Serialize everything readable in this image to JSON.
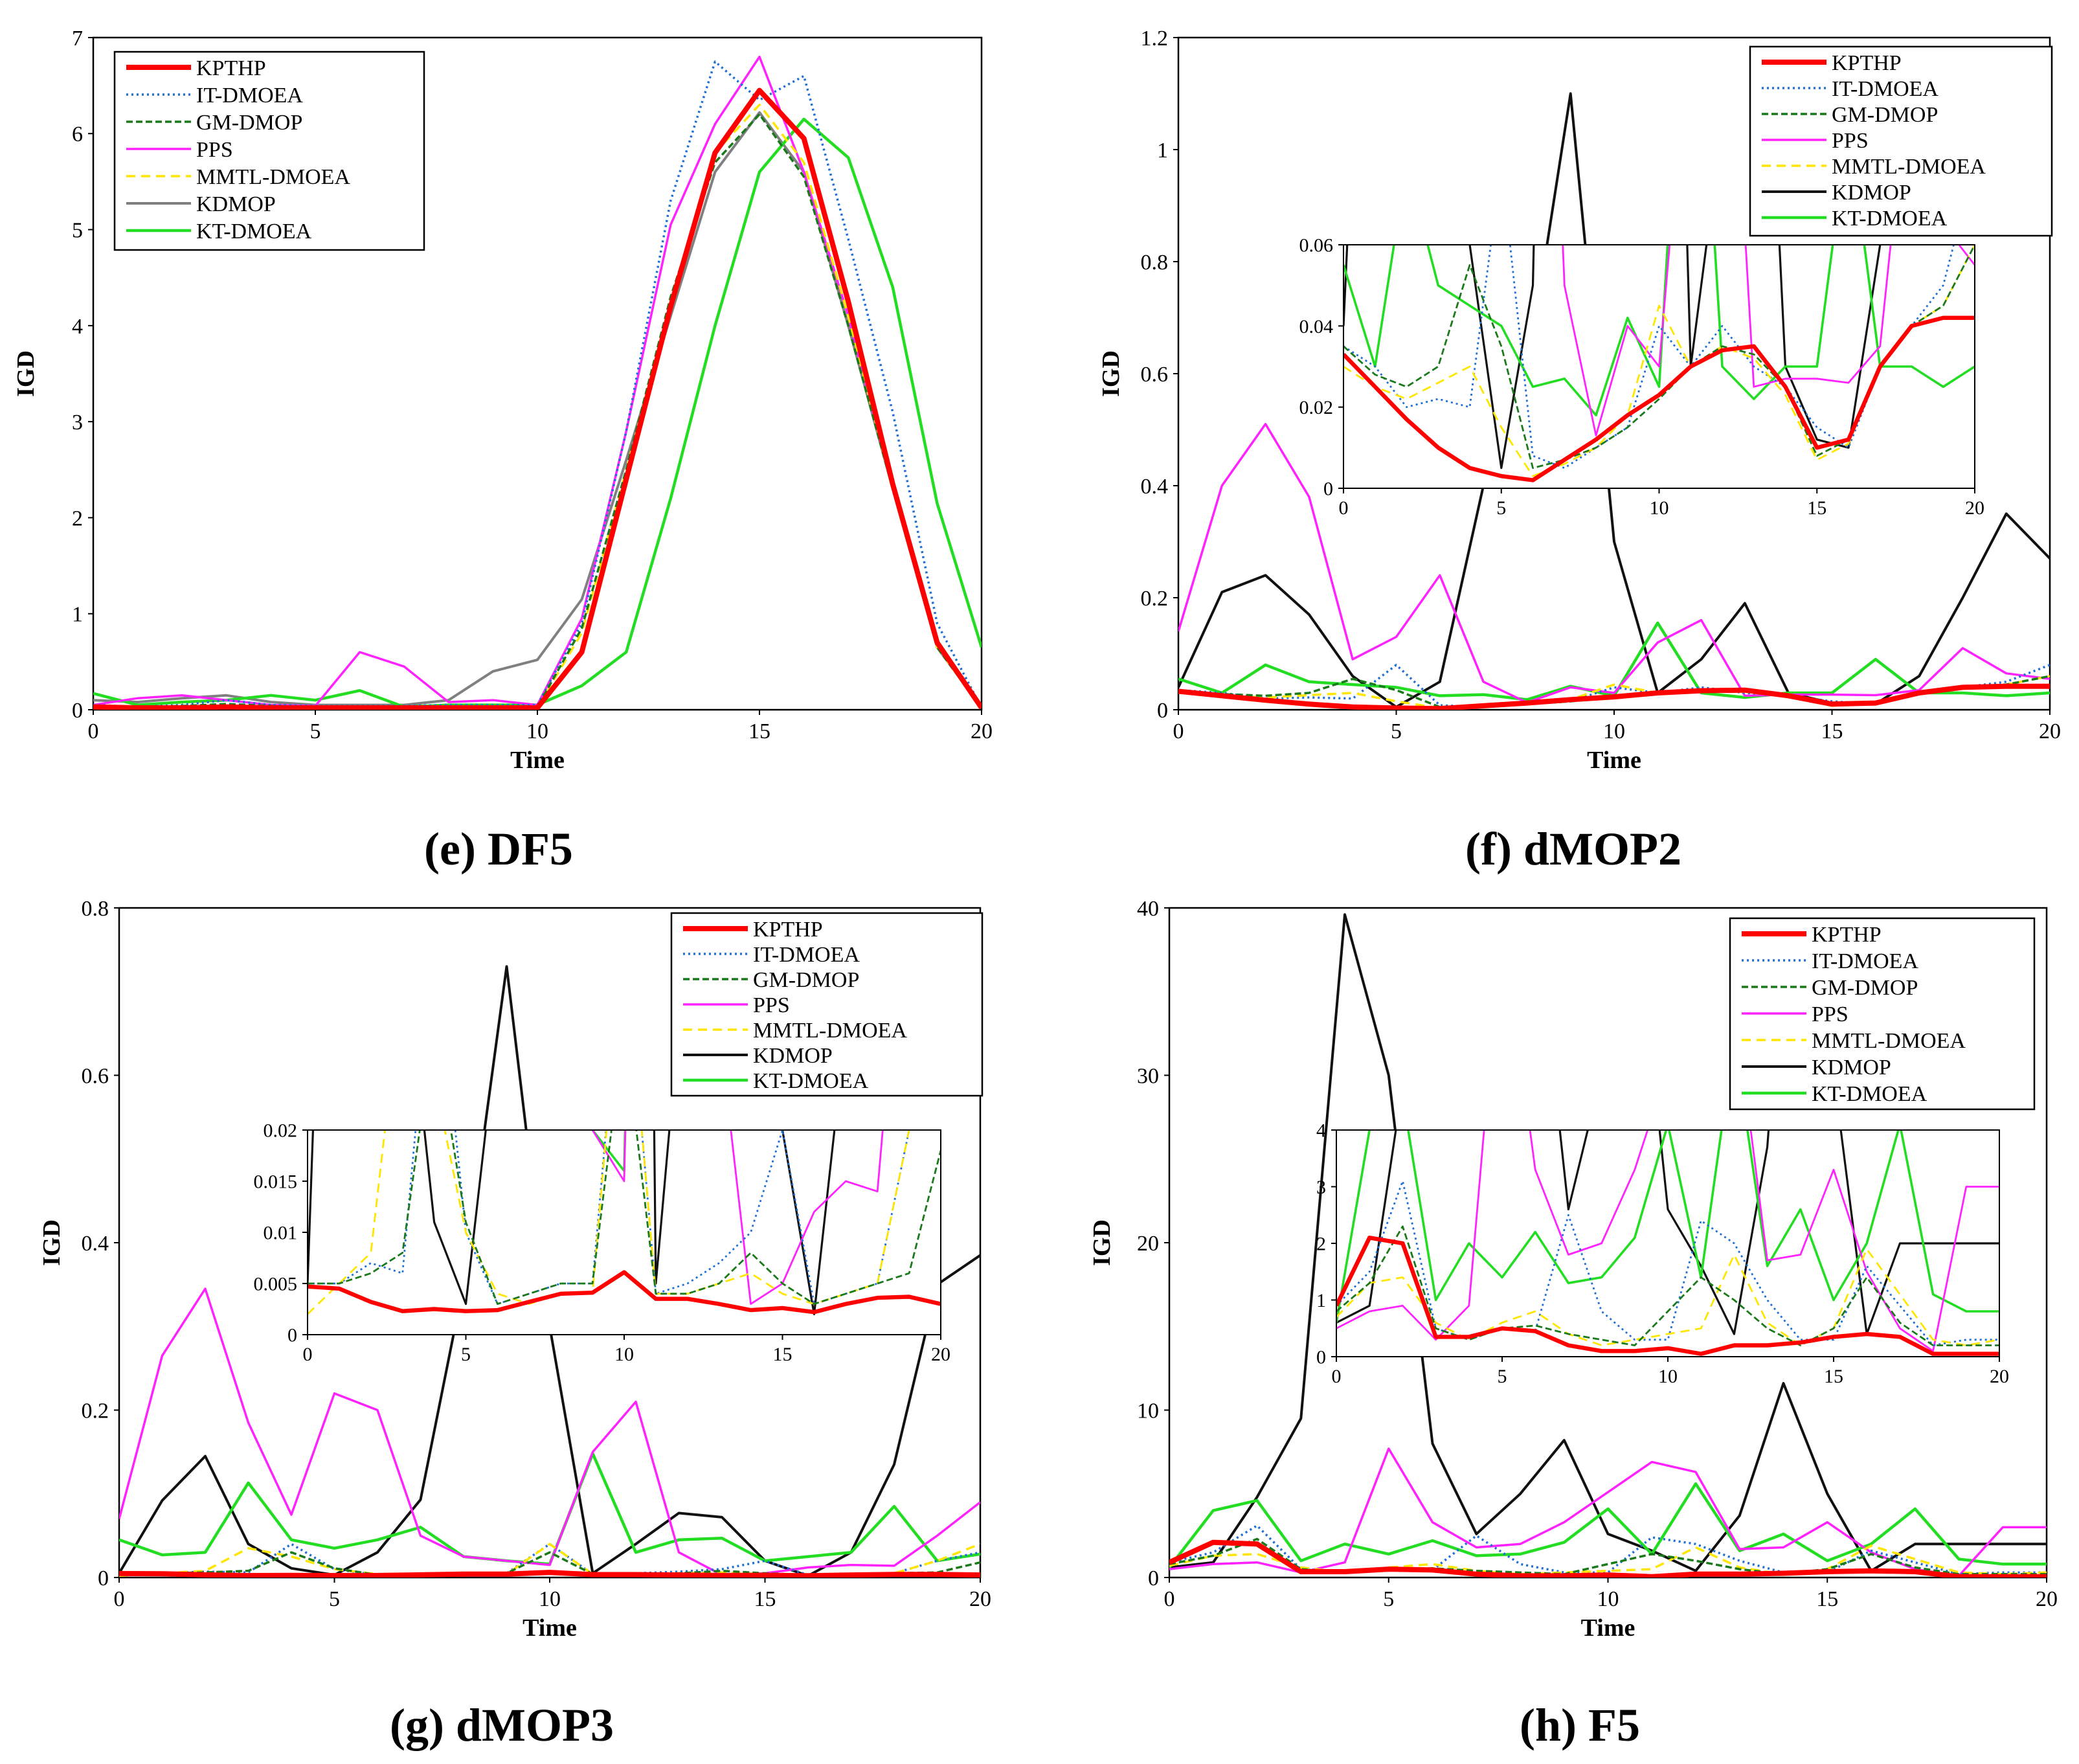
{
  "colors": {
    "KPTHP": "#ff0000",
    "IT-DMOEA": "#1f6fd6",
    "GM-DMOP": "#1a7a1a",
    "PPS": "#ff22ff",
    "MMTL-DMOEA": "#ffe600",
    "KDMOP": "#111111",
    "KDMOP_gray": "#808080",
    "KT-DMOEA": "#22dd22"
  },
  "chart_data": [
    {
      "type": "line",
      "caption": "(e) DF5",
      "xlabel": "Time",
      "ylabel": "IGD",
      "xlim": [
        0,
        20
      ],
      "ylim": [
        0,
        7
      ],
      "xticks": [
        "0",
        "5",
        "10",
        "15",
        "20"
      ],
      "yticks": [
        "0",
        "1",
        "2",
        "3",
        "4",
        "5",
        "6",
        "7"
      ],
      "legend": [
        "KPTHP",
        "IT-DMOEA",
        "GM-DMOP",
        "PPS",
        "MMTL-DMOEA",
        "KDMOP",
        "KT-DMOEA"
      ],
      "legend_position": "top-left",
      "x": [
        0,
        1,
        2,
        3,
        4,
        5,
        6,
        7,
        8,
        9,
        10,
        11,
        12,
        13,
        14,
        15,
        16,
        17,
        18,
        19,
        20
      ],
      "series": [
        {
          "name": "KPTHP",
          "values": [
            0.03,
            0.02,
            0.02,
            0.03,
            0.02,
            0.02,
            0.02,
            0.02,
            0.02,
            0.02,
            0.02,
            0.6,
            2.4,
            4.2,
            5.8,
            6.45,
            5.95,
            4.25,
            2.35,
            0.7,
            0.02
          ]
        },
        {
          "name": "IT-DMOEA",
          "values": [
            0.05,
            0.03,
            0.05,
            0.1,
            0.05,
            0.04,
            0.04,
            0.04,
            0.05,
            0.05,
            0.05,
            0.9,
            2.9,
            5.3,
            6.75,
            6.35,
            6.6,
            4.9,
            3.1,
            0.9,
            0.02
          ]
        },
        {
          "name": "GM-DMOP",
          "values": [
            0.04,
            0.03,
            0.04,
            0.06,
            0.04,
            0.03,
            0.03,
            0.03,
            0.03,
            0.03,
            0.03,
            0.85,
            2.5,
            4.3,
            5.7,
            6.2,
            5.55,
            4.0,
            2.3,
            0.65,
            0.02
          ]
        },
        {
          "name": "PPS",
          "values": [
            0.05,
            0.12,
            0.15,
            0.1,
            0.05,
            0.04,
            0.6,
            0.45,
            0.08,
            0.1,
            0.05,
            0.95,
            2.9,
            5.05,
            6.1,
            6.8,
            5.6,
            4.1,
            2.3,
            0.7,
            0.02
          ]
        },
        {
          "name": "MMTL-DMOEA",
          "values": [
            0.03,
            0.02,
            0.03,
            0.04,
            0.03,
            0.02,
            0.02,
            0.02,
            0.02,
            0.02,
            0.02,
            0.8,
            2.5,
            4.2,
            5.8,
            6.3,
            5.7,
            4.1,
            2.3,
            0.65,
            0.02
          ]
        },
        {
          "name": "KDMOP",
          "values": [
            0.1,
            0.08,
            0.12,
            0.15,
            0.08,
            0.05,
            0.05,
            0.05,
            0.1,
            0.4,
            0.52,
            1.15,
            2.6,
            4.1,
            5.6,
            6.22,
            5.6,
            4.0,
            2.3,
            0.65,
            0.02
          ]
        },
        {
          "name": "KT-DMOEA",
          "values": [
            0.17,
            0.05,
            0.08,
            0.1,
            0.15,
            0.1,
            0.2,
            0.03,
            0.05,
            0.05,
            0.05,
            0.25,
            0.6,
            2.2,
            4.0,
            5.6,
            6.15,
            5.75,
            4.4,
            2.15,
            0.65
          ]
        }
      ]
    },
    {
      "type": "line",
      "caption": "(f) dMOP2",
      "xlabel": "Time",
      "ylabel": "IGD",
      "xlim": [
        0,
        20
      ],
      "ylim": [
        0,
        1.2
      ],
      "xticks": [
        "0",
        "5",
        "10",
        "15",
        "20"
      ],
      "yticks": [
        "0",
        "0.2",
        "0.4",
        "0.6",
        "0.8",
        "1",
        "1.2"
      ],
      "legend": [
        "KPTHP",
        "IT-DMOEA",
        "GM-DMOP",
        "PPS",
        "MMTL-DMOEA",
        "KDMOP",
        "KT-DMOEA"
      ],
      "legend_position": "top-right",
      "x": [
        0,
        1,
        2,
        3,
        4,
        5,
        6,
        7,
        8,
        9,
        10,
        11,
        12,
        13,
        14,
        15,
        16,
        17,
        18,
        19,
        20
      ],
      "series": [
        {
          "name": "KPTHP",
          "values": [
            0.033,
            0.025,
            0.017,
            0.01,
            0.005,
            0.003,
            0.002,
            0.007,
            0.012,
            0.018,
            0.023,
            0.03,
            0.034,
            0.035,
            0.025,
            0.01,
            0.012,
            0.03,
            0.04,
            0.042,
            0.042
          ]
        },
        {
          "name": "IT-DMOEA",
          "values": [
            0.035,
            0.03,
            0.02,
            0.022,
            0.02,
            0.08,
            0.008,
            0.005,
            0.01,
            0.015,
            0.04,
            0.03,
            0.04,
            0.03,
            0.025,
            0.015,
            0.01,
            0.03,
            0.04,
            0.05,
            0.08
          ]
        },
        {
          "name": "GM-DMOP",
          "values": [
            0.035,
            0.028,
            0.025,
            0.03,
            0.055,
            0.035,
            0.005,
            0.007,
            0.01,
            0.015,
            0.022,
            0.03,
            0.035,
            0.033,
            0.025,
            0.008,
            0.012,
            0.03,
            0.04,
            0.045,
            0.06
          ]
        },
        {
          "name": "PPS",
          "values": [
            0.14,
            0.4,
            0.51,
            0.38,
            0.09,
            0.13,
            0.24,
            0.05,
            0.013,
            0.04,
            0.03,
            0.12,
            0.16,
            0.025,
            0.027,
            0.027,
            0.026,
            0.035,
            0.11,
            0.065,
            0.055
          ]
        },
        {
          "name": "MMTL-DMOEA",
          "values": [
            0.03,
            0.025,
            0.022,
            0.026,
            0.03,
            0.015,
            0.003,
            0.006,
            0.01,
            0.018,
            0.045,
            0.03,
            0.035,
            0.032,
            0.023,
            0.007,
            0.011,
            0.03,
            0.04,
            0.045,
            0.06
          ]
        },
        {
          "name": "KDMOP",
          "values": [
            0.04,
            0.21,
            0.24,
            0.17,
            0.06,
            0.005,
            0.05,
            0.4,
            0.6,
            1.1,
            0.3,
            0.03,
            0.09,
            0.19,
            0.03,
            0.012,
            0.01,
            0.06,
            0.2,
            0.35,
            0.27
          ]
        },
        {
          "name": "KT-DMOEA",
          "values": [
            0.055,
            0.03,
            0.08,
            0.05,
            0.045,
            0.04,
            0.025,
            0.027,
            0.018,
            0.042,
            0.025,
            0.155,
            0.03,
            0.022,
            0.03,
            0.03,
            0.09,
            0.03,
            0.03,
            0.025,
            0.03
          ]
        }
      ],
      "inset": {
        "xlim": [
          0,
          20
        ],
        "ylim": [
          0,
          0.06
        ],
        "xticks": [
          "0",
          "5",
          "10",
          "15",
          "20"
        ],
        "yticks": [
          "0",
          "0.02",
          "0.04",
          "0.06"
        ]
      }
    },
    {
      "type": "line",
      "caption": "(g) dMOP3",
      "xlabel": "Time",
      "ylabel": "IGD",
      "xlim": [
        0,
        20
      ],
      "ylim": [
        0,
        0.8
      ],
      "xticks": [
        "0",
        "5",
        "10",
        "15",
        "20"
      ],
      "yticks": [
        "0",
        "0.2",
        "0.4",
        "0.6",
        "0.8"
      ],
      "legend": [
        "KPTHP",
        "IT-DMOEA",
        "GM-DMOP",
        "PPS",
        "MMTL-DMOEA",
        "KDMOP",
        "KT-DMOEA"
      ],
      "legend_position": "top-right",
      "x": [
        0,
        1,
        2,
        3,
        4,
        5,
        6,
        7,
        8,
        9,
        10,
        11,
        12,
        13,
        14,
        15,
        16,
        17,
        18,
        19,
        20
      ],
      "series": [
        {
          "name": "KPTHP",
          "values": [
            0.0047,
            0.0045,
            0.0032,
            0.0023,
            0.0025,
            0.0023,
            0.0024,
            0.0032,
            0.004,
            0.0041,
            0.0061,
            0.0035,
            0.0035,
            0.003,
            0.0024,
            0.0026,
            0.0022,
            0.003,
            0.0036,
            0.0037,
            0.003
          ]
        },
        {
          "name": "IT-DMOEA",
          "values": [
            0.005,
            0.005,
            0.007,
            0.006,
            0.04,
            0.01,
            0.003,
            0.004,
            0.005,
            0.005,
            0.04,
            0.004,
            0.005,
            0.007,
            0.01,
            0.02,
            0.003,
            0.004,
            0.005,
            0.02,
            0.03
          ]
        },
        {
          "name": "GM-DMOP",
          "values": [
            0.005,
            0.005,
            0.006,
            0.008,
            0.03,
            0.011,
            0.003,
            0.004,
            0.005,
            0.005,
            0.03,
            0.004,
            0.004,
            0.005,
            0.008,
            0.005,
            0.003,
            0.004,
            0.005,
            0.006,
            0.018
          ]
        },
        {
          "name": "PPS",
          "values": [
            0.07,
            0.265,
            0.345,
            0.185,
            0.075,
            0.22,
            0.2,
            0.05,
            0.025,
            0.02,
            0.015,
            0.15,
            0.21,
            0.03,
            0.003,
            0.005,
            0.012,
            0.015,
            0.014,
            0.05,
            0.09
          ]
        },
        {
          "name": "MMTL-DMOEA",
          "values": [
            0.002,
            0.005,
            0.008,
            0.035,
            0.025,
            0.01,
            0.004,
            0.003,
            0.004,
            0.004,
            0.04,
            0.004,
            0.004,
            0.005,
            0.006,
            0.004,
            0.003,
            0.004,
            0.005,
            0.02,
            0.04
          ]
        },
        {
          "name": "KDMOP",
          "values": [
            0.005,
            0.092,
            0.145,
            0.04,
            0.011,
            0.003,
            0.03,
            0.093,
            0.35,
            0.73,
            0.3,
            0.005,
            0.04,
            0.077,
            0.072,
            0.02,
            0.002,
            0.03,
            0.135,
            0.35,
            0.385
          ]
        },
        {
          "name": "KT-DMOEA",
          "values": [
            0.045,
            0.027,
            0.03,
            0.113,
            0.045,
            0.035,
            0.045,
            0.06,
            0.025,
            0.02,
            0.016,
            0.148,
            0.03,
            0.045,
            0.047,
            0.02,
            0.025,
            0.03,
            0.085,
            0.02,
            0.028
          ]
        }
      ],
      "inset": {
        "xlim": [
          0,
          20
        ],
        "ylim": [
          0,
          0.02
        ],
        "xticks": [
          "0",
          "5",
          "10",
          "15",
          "20"
        ],
        "yticks": [
          "0",
          "0.005",
          "0.01",
          "0.015",
          "0.02"
        ]
      }
    },
    {
      "type": "line",
      "caption": "(h) F5",
      "xlabel": "Time",
      "ylabel": "IGD",
      "xlim": [
        0,
        20
      ],
      "ylim": [
        0,
        40
      ],
      "xticks": [
        "0",
        "5",
        "10",
        "15",
        "20"
      ],
      "yticks": [
        "0",
        "10",
        "20",
        "30",
        "40"
      ],
      "legend": [
        "KPTHP",
        "IT-DMOEA",
        "GM-DMOP",
        "PPS",
        "MMTL-DMOEA",
        "KDMOP",
        "KT-DMOEA"
      ],
      "legend_position": "top-right",
      "x": [
        0,
        1,
        2,
        3,
        4,
        5,
        6,
        7,
        8,
        9,
        10,
        11,
        12,
        13,
        14,
        15,
        16,
        17,
        18,
        19,
        20
      ],
      "series": [
        {
          "name": "KPTHP",
          "values": [
            0.9,
            2.1,
            2.0,
            0.35,
            0.35,
            0.5,
            0.45,
            0.2,
            0.1,
            0.1,
            0.15,
            0.05,
            0.2,
            0.2,
            0.25,
            0.35,
            0.4,
            0.35,
            0.05,
            0.05,
            0.05
          ]
        },
        {
          "name": "IT-DMOEA",
          "values": [
            0.9,
            1.5,
            3.1,
            0.5,
            0.3,
            0.5,
            0.45,
            2.5,
            0.8,
            0.3,
            0.3,
            2.4,
            2.0,
            1.0,
            0.3,
            0.3,
            1.6,
            0.9,
            0.2,
            0.3,
            0.3
          ]
        },
        {
          "name": "GM-DMOP",
          "values": [
            0.8,
            1.3,
            2.3,
            0.5,
            0.3,
            0.5,
            0.55,
            0.4,
            0.3,
            0.2,
            0.8,
            1.4,
            1.0,
            0.5,
            0.2,
            0.5,
            1.4,
            0.6,
            0.2,
            0.2,
            0.2
          ]
        },
        {
          "name": "PPS",
          "values": [
            0.5,
            0.8,
            0.9,
            0.3,
            0.9,
            7.7,
            3.3,
            1.8,
            2.0,
            3.3,
            5.1,
            6.9,
            6.3,
            1.7,
            1.8,
            3.3,
            1.5,
            0.5,
            0.1,
            3.0,
            3.0
          ]
        },
        {
          "name": "MMTL-DMOEA",
          "values": [
            0.7,
            1.3,
            1.4,
            0.6,
            0.3,
            0.6,
            0.8,
            0.4,
            0.2,
            0.3,
            0.4,
            0.5,
            1.8,
            0.6,
            0.2,
            0.5,
            1.9,
            1.1,
            0.3,
            0.2,
            0.3
          ]
        },
        {
          "name": "KDMOP",
          "values": [
            0.6,
            0.9,
            4.8,
            9.5,
            39.6,
            30.0,
            8.0,
            2.6,
            5.0,
            8.2,
            2.6,
            1.6,
            0.4,
            3.7,
            11.6,
            5.0,
            0.4,
            2.0,
            2.0,
            2.0,
            2.0
          ]
        },
        {
          "name": "KT-DMOEA",
          "values": [
            0.6,
            4.0,
            4.6,
            1.0,
            2.0,
            1.4,
            2.2,
            1.3,
            1.4,
            2.1,
            4.1,
            1.4,
            5.6,
            1.6,
            2.6,
            1.0,
            2.0,
            4.1,
            1.1,
            0.8,
            0.8
          ]
        }
      ],
      "inset": {
        "xlim": [
          0,
          20
        ],
        "ylim": [
          0,
          4
        ],
        "xticks": [
          "0",
          "5",
          "10",
          "15",
          "20"
        ],
        "yticks": [
          "0",
          "1",
          "2",
          "3",
          "4"
        ]
      }
    }
  ]
}
